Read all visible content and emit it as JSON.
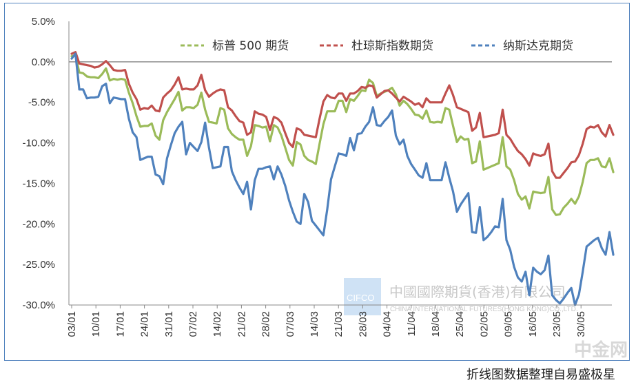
{
  "chart_data": {
    "type": "line",
    "ylim": [
      -30,
      5
    ],
    "yticks": [
      "5.0%",
      "0.0%",
      "-5.0%",
      "-10.0%",
      "-15.0%",
      "-20.0%",
      "-25.0%",
      "-30.0%"
    ],
    "xticks": [
      "03/01",
      "10/01",
      "17/01",
      "24/01",
      "31/01",
      "07/02",
      "14/02",
      "21/02",
      "28/02",
      "07/03",
      "14/03",
      "21/03",
      "28/03",
      "04/04",
      "11/04",
      "18/04",
      "25/04",
      "02/05",
      "09/05",
      "16/05",
      "23/05",
      "30/05"
    ],
    "legend_position": "top",
    "series": [
      {
        "name": "标普 500 期货",
        "color": "#9bbb59",
        "values": [
          0.7,
          0.8,
          -1.3,
          -1.4,
          -1.8,
          -1.9,
          -1.9,
          -2.0,
          -1.5,
          -0.8,
          -2.3,
          -2.1,
          -2.2,
          -2.1,
          -2.2,
          -3.8,
          -5.1,
          -6.7,
          -8.0,
          -7.9,
          -7.9,
          -7.6,
          -9.1,
          -9.6,
          -7.2,
          -6.2,
          -5.4,
          -4.6,
          -3.7,
          -6.0,
          -5.6,
          -5.6,
          -5.7,
          -5.3,
          -3.8,
          -5.9,
          -7.4,
          -7.5,
          -7.6,
          -5.7,
          -5.9,
          -8.2,
          -8.9,
          -9.3,
          -9.6,
          -9.6,
          -11.6,
          -10.4,
          -7.8,
          -7.9,
          -8.1,
          -8.0,
          -9.8,
          -7.8,
          -8.1,
          -9.1,
          -10.6,
          -12.1,
          -12.8,
          -9.9,
          -10.2,
          -11.6,
          -12.1,
          -12.3,
          -12.6,
          -10.1,
          -7.7,
          -6.1,
          -6.1,
          -6.1,
          -4.8,
          -4.8,
          -6.2,
          -4.6,
          -4.8,
          -4.2,
          -3.5,
          -3.6,
          -2.2,
          -2.6,
          -4.2,
          -3.9,
          -3.7,
          -3.5,
          -3.2,
          -4.0,
          -5.4,
          -4.8,
          -5.2,
          -5.8,
          -6.5,
          -6.6,
          -7.0,
          -6.0,
          -7.4,
          -7.5,
          -7.4,
          -7.5,
          -5.7,
          -5.9,
          -7.9,
          -9.9,
          -9.2,
          -9.6,
          -9.5,
          -12.5,
          -12.3,
          -9.8,
          -13.3,
          -13.1,
          -12.9,
          -12.7,
          -12.5,
          -9.3,
          -12.9,
          -13.3,
          -14.6,
          -16.3,
          -17.0,
          -16.6,
          -18.1,
          -16.0,
          -16.1,
          -16.2,
          -16.1,
          -14.2,
          -18.2,
          -18.9,
          -18.8,
          -18.0,
          -17.5,
          -16.9,
          -17.5,
          -16.6,
          -14.8,
          -12.5,
          -12.1,
          -12.1,
          -11.9,
          -12.9,
          -13.0,
          -11.9,
          -13.6
        ]
      },
      {
        "name": "杜琼斯指数期货",
        "color": "#c0504d",
        "values": [
          1.0,
          1.2,
          -0.2,
          -0.3,
          -0.4,
          -0.5,
          -0.7,
          -0.6,
          -0.3,
          0.1,
          -0.4,
          -1.0,
          -1.1,
          -1.1,
          -1.0,
          -2.7,
          -3.8,
          -4.6,
          -5.9,
          -5.7,
          -5.8,
          -5.4,
          -6.0,
          -6.1,
          -4.4,
          -3.9,
          -3.5,
          -2.8,
          -1.9,
          -3.4,
          -3.3,
          -3.4,
          -3.4,
          -2.9,
          -1.6,
          -3.5,
          -4.3,
          -3.9,
          -3.6,
          -3.4,
          -3.5,
          -5.6,
          -6.0,
          -6.7,
          -7.3,
          -7.5,
          -9.0,
          -8.7,
          -6.1,
          -6.4,
          -6.5,
          -6.8,
          -8.4,
          -6.8,
          -7.0,
          -7.5,
          -8.8,
          -10.0,
          -10.5,
          -8.2,
          -8.4,
          -9.0,
          -9.1,
          -9.2,
          -9.3,
          -7.0,
          -4.9,
          -4.1,
          -4.4,
          -4.5,
          -3.9,
          -3.9,
          -4.8,
          -3.9,
          -3.9,
          -3.6,
          -3.1,
          -3.2,
          -2.9,
          -3.0,
          -4.4,
          -4.0,
          -3.6,
          -3.5,
          -3.9,
          -4.4,
          -4.9,
          -4.3,
          -4.6,
          -4.9,
          -5.3,
          -5.1,
          -5.6,
          -4.5,
          -5.0,
          -5.0,
          -5.0,
          -5.0,
          -3.9,
          -2.9,
          -4.1,
          -5.6,
          -5.8,
          -6.0,
          -6.2,
          -8.5,
          -8.1,
          -6.3,
          -9.3,
          -9.2,
          -9.1,
          -9.0,
          -8.8,
          -5.9,
          -9.0,
          -9.5,
          -10.3,
          -11.0,
          -11.4,
          -12.0,
          -12.8,
          -11.3,
          -11.5,
          -11.6,
          -11.4,
          -10.1,
          -13.5,
          -14.3,
          -14.3,
          -13.7,
          -13.1,
          -12.4,
          -12.3,
          -11.5,
          -10.1,
          -8.3,
          -8.0,
          -8.1,
          -7.8,
          -8.7,
          -9.2,
          -7.8,
          -9.0
        ]
      },
      {
        "name": "纳斯达克期货",
        "color": "#4f81bd",
        "values": [
          0.4,
          1.0,
          -3.4,
          -3.4,
          -4.5,
          -4.4,
          -4.4,
          -4.3,
          -3.0,
          -2.7,
          -5.1,
          -4.4,
          -4.5,
          -4.6,
          -4.6,
          -7.0,
          -8.7,
          -9.3,
          -12.1,
          -11.9,
          -11.7,
          -11.7,
          -13.9,
          -14.1,
          -15.1,
          -11.9,
          -10.3,
          -8.8,
          -8.0,
          -7.4,
          -11.4,
          -10.0,
          -10.5,
          -11.0,
          -9.9,
          -7.5,
          -10.6,
          -13.1,
          -13.0,
          -12.9,
          -10.5,
          -10.5,
          -13.5,
          -14.6,
          -15.5,
          -16.3,
          -14.8,
          -18.2,
          -14.6,
          -13.2,
          -13.2,
          -13.0,
          -12.9,
          -14.5,
          -12.9,
          -13.9,
          -15.3,
          -17.1,
          -18.5,
          -19.7,
          -20.0,
          -16.3,
          -17.3,
          -19.6,
          -20.2,
          -20.8,
          -21.4,
          -18.2,
          -14.5,
          -12.9,
          -11.3,
          -11.4,
          -11.6,
          -9.4,
          -10.9,
          -8.9,
          -8.8,
          -8.0,
          -7.4,
          -5.6,
          -7.8,
          -7.9,
          -7.3,
          -6.8,
          -6.0,
          -9.1,
          -10.2,
          -9.6,
          -11.6,
          -12.6,
          -13.3,
          -14.0,
          -14.3,
          -12.5,
          -14.6,
          -14.6,
          -14.6,
          -14.6,
          -12.4,
          -14.3,
          -16.0,
          -18.5,
          -17.6,
          -16.9,
          -16.2,
          -21.0,
          -21.1,
          -17.9,
          -22.0,
          -21.6,
          -21.0,
          -20.3,
          -20.4,
          -16.9,
          -22.0,
          -23.2,
          -25.3,
          -26.6,
          -27.1,
          -25.9,
          -28.8,
          -25.4,
          -25.9,
          -26.2,
          -25.7,
          -23.9,
          -28.8,
          -29.4,
          -29.8,
          -29.2,
          -28.5,
          -27.9,
          -30.0,
          -28.7,
          -25.9,
          -22.8,
          -22.4,
          -22.0,
          -21.7,
          -23.0,
          -23.8,
          -21.0,
          -23.8
        ]
      }
    ]
  },
  "watermark": {
    "logo": "CIFCO",
    "cn_name": "中國國際期貨(香港)有限公司",
    "en_name": "CHINA INTERNATIONAL FUTURES(HONG KONG)CO.,LTD."
  },
  "footer": {
    "caption": "折线图数据整理自易盛极星"
  },
  "brand": {
    "name": "中金网"
  }
}
